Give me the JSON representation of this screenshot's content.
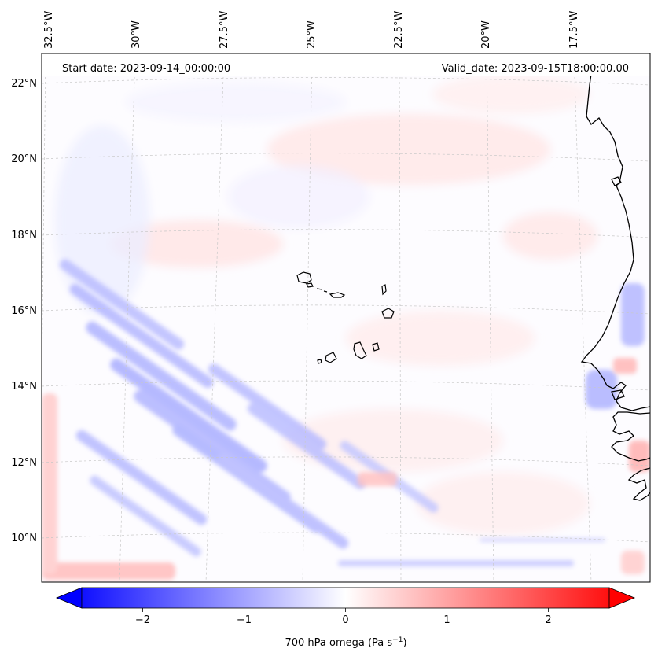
{
  "header": {
    "start_date": "Start date: 2023-09-14_00:00:00",
    "valid_date": "Valid_date: 2023-09-15T18:00:00.00"
  },
  "map": {
    "projection": "lambert-conformal",
    "lon_range": [
      -33.0,
      -15.0
    ],
    "lat_range": [
      9.0,
      22.8
    ],
    "lon_ticks": [
      "32.5°W",
      "30°W",
      "27.5°W",
      "25°W",
      "22.5°W",
      "20°W",
      "17.5°W"
    ],
    "lat_ticks": [
      "10°N",
      "12°N",
      "14°N",
      "16°N",
      "18°N",
      "20°N",
      "22°N"
    ],
    "gridlines": true,
    "coastline_color": "#000000",
    "features": [
      "west-africa-coastline",
      "cape-verde-islands"
    ]
  },
  "colorbar": {
    "label_main": "700 hPa omega (Pa s",
    "label_sup": "−1",
    "label_end": ")",
    "ticks": [
      "−2",
      "−1",
      "0",
      "1",
      "2"
    ],
    "tick_values": [
      -2,
      -1,
      0,
      1,
      2
    ],
    "range": [
      -2.6,
      2.6
    ],
    "extend": "both",
    "cmap": "bwr",
    "colors": {
      "negative": "#0000ff",
      "zero": "#ffffff",
      "positive": "#ff0000"
    }
  }
}
